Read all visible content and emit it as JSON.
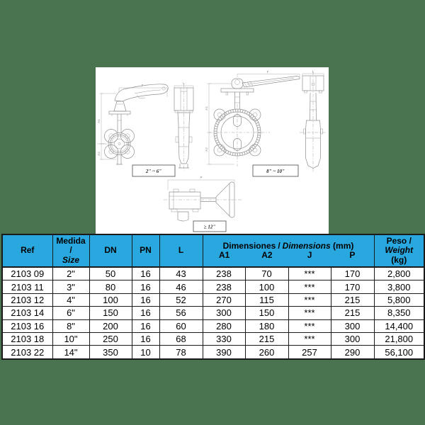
{
  "colors": {
    "background_green": "#4A7350",
    "table_header_cyan": "#29A8E0",
    "table_line_dark": "#1a1a1a",
    "drawing_line_gray": "#8f8f8f"
  },
  "drawings": {
    "range_labels": [
      "2\" ~ 6\"",
      "8\" ~ 10\"",
      "≥ 12\""
    ],
    "dim_f": "F",
    "dim_a1": "A1",
    "dim_a2": "A2",
    "dim_l": "L",
    "dim_p": "P"
  },
  "table": {
    "header": {
      "ref": "Ref",
      "medida_line1": "Medida",
      "medida_sep": "/",
      "medida_line2": "Size",
      "dn": "DN",
      "pn": "PN",
      "l": "L",
      "dims_title_es": "Dimensiones",
      "dims_sep": "/",
      "dims_title_en": "Dimensions",
      "dims_unit": "(mm)",
      "sub": [
        "A1",
        "A2",
        "J",
        "P"
      ],
      "peso_line1": "Peso /",
      "peso_line2": "Weight",
      "peso_line3": "(kg)"
    },
    "rows": [
      {
        "ref": "2103 09",
        "size": "2\"",
        "dn": "50",
        "pn": "16",
        "l": "43",
        "a1": "238",
        "a2": "70",
        "j": "***",
        "p": "170",
        "w": "2,800"
      },
      {
        "ref": "2103 11",
        "size": "3\"",
        "dn": "80",
        "pn": "16",
        "l": "46",
        "a1": "238",
        "a2": "100",
        "j": "***",
        "p": "170",
        "w": "3,800"
      },
      {
        "ref": "2103 12",
        "size": "4\"",
        "dn": "100",
        "pn": "16",
        "l": "52",
        "a1": "270",
        "a2": "115",
        "j": "***",
        "p": "215",
        "w": "5,800"
      },
      {
        "ref": "2103 14",
        "size": "6\"",
        "dn": "150",
        "pn": "16",
        "l": "56",
        "a1": "300",
        "a2": "150",
        "j": "***",
        "p": "215",
        "w": "8,350"
      },
      {
        "ref": "2103 16",
        "size": "8\"",
        "dn": "200",
        "pn": "16",
        "l": "60",
        "a1": "280",
        "a2": "180",
        "j": "***",
        "p": "300",
        "w": "14,400"
      },
      {
        "ref": "2103 18",
        "size": "10\"",
        "dn": "250",
        "pn": "16",
        "l": "68",
        "a1": "330",
        "a2": "215",
        "j": "***",
        "p": "300",
        "w": "21,800"
      },
      {
        "ref": "2103 22",
        "size": "14\"",
        "dn": "350",
        "pn": "10",
        "l": "78",
        "a1": "390",
        "a2": "260",
        "j": "257",
        "p": "290",
        "w": "56,100"
      }
    ]
  }
}
